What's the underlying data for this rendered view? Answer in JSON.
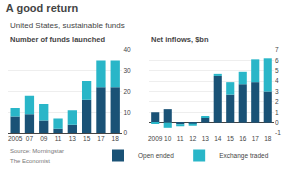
{
  "title": "A good return",
  "subtitle": "United States, sustainable funds",
  "annotations": [
    "Source: Morningstar",
    "The Economist"
  ],
  "chart_data": [
    {
      "type": "bar",
      "stacked": true,
      "title": "Number of funds launched",
      "categories": [
        "2005",
        "07",
        "09",
        "11",
        "13",
        "15",
        "17",
        "18"
      ],
      "series": [
        {
          "name": "Open ended",
          "color": "#1a5276",
          "values": [
            8,
            9,
            6,
            2,
            4,
            16,
            22,
            22
          ]
        },
        {
          "name": "Exchange traded",
          "color": "#29b6c8",
          "values": [
            4,
            9,
            8,
            5,
            7,
            9,
            13,
            13
          ]
        }
      ],
      "ylim": [
        0,
        40
      ],
      "yticks": [
        0,
        10,
        20,
        30,
        40
      ],
      "grid": true,
      "legend": "lower right"
    },
    {
      "type": "bar",
      "stacked": true,
      "title": "Net inflows, $bn",
      "categories": [
        "2009",
        "10",
        "11",
        "12",
        "13",
        "14",
        "15",
        "16",
        "17",
        "18"
      ],
      "series": [
        {
          "name": "Open ended",
          "color": "#1a5276",
          "values": [
            1.0,
            1.3,
            -0.15,
            -0.1,
            0.5,
            4.5,
            2.7,
            3.7,
            3.9,
            3.0
          ]
        },
        {
          "name": "Exchange traded",
          "color": "#29b6c8",
          "values": [
            -0.1,
            -0.5,
            -0.2,
            -0.2,
            0.1,
            0.2,
            1.2,
            1.2,
            2.2,
            3.2
          ]
        }
      ],
      "ylim": [
        -1,
        7
      ],
      "yticks": [
        -1,
        0,
        1,
        2,
        3,
        4,
        5,
        6,
        7
      ],
      "grid": true
    }
  ]
}
